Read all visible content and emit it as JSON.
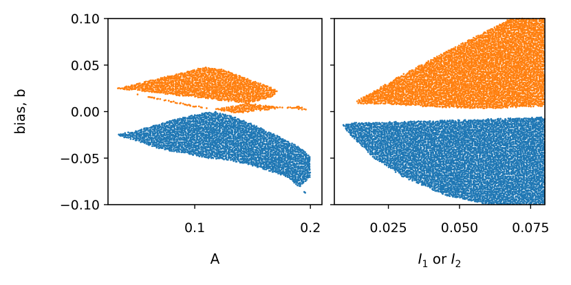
{
  "chart_data": [
    {
      "type": "scatter",
      "title": "",
      "xlabel": "A",
      "ylabel": "bias, b",
      "xlim": [
        0.025,
        0.21
      ],
      "ylim": [
        -0.1,
        0.1
      ],
      "xticks": [
        {
          "value": 0.1,
          "label": "0.1"
        },
        {
          "value": 0.2,
          "label": "0.2"
        }
      ],
      "yticks": [
        {
          "value": 0.1,
          "label": "0.10"
        },
        {
          "value": 0.05,
          "label": "0.05"
        },
        {
          "value": 0.0,
          "label": "0.00"
        },
        {
          "value": -0.05,
          "label": "−0.05"
        },
        {
          "value": -0.1,
          "label": "−0.10"
        }
      ],
      "grid": false,
      "colors": {
        "orange": "#ff7f0e",
        "blue": "#1f77b4"
      },
      "series": [
        {
          "color": "#ff7f0e",
          "points": [
            [
              0.032,
              0.025
            ],
            [
              0.05,
              0.03
            ],
            [
              0.07,
              0.036
            ],
            [
              0.09,
              0.042
            ],
            [
              0.105,
              0.047
            ],
            [
              0.113,
              0.048
            ],
            [
              0.125,
              0.045
            ],
            [
              0.14,
              0.038
            ],
            [
              0.155,
              0.031
            ],
            [
              0.168,
              0.025
            ],
            [
              0.172,
              0.021
            ],
            [
              0.165,
              0.015
            ],
            [
              0.15,
              0.01
            ],
            [
              0.13,
              0.005
            ],
            [
              0.115,
              0.003
            ],
            [
              0.1,
              0.005
            ],
            [
              0.085,
              0.009
            ],
            [
              0.065,
              0.014
            ],
            [
              0.045,
              0.02
            ],
            [
              0.136,
              -0.002
            ],
            [
              0.19,
              0.006
            ],
            [
              0.2,
              0.001
            ]
          ]
        },
        {
          "color": "#1f77b4",
          "points": [
            [
              0.032,
              -0.025
            ],
            [
              0.05,
              -0.02
            ],
            [
              0.07,
              -0.013
            ],
            [
              0.09,
              -0.006
            ],
            [
              0.11,
              -0.001
            ],
            [
              0.118,
              0.0
            ],
            [
              0.135,
              -0.006
            ],
            [
              0.155,
              -0.016
            ],
            [
              0.175,
              -0.028
            ],
            [
              0.19,
              -0.038
            ],
            [
              0.2,
              -0.048
            ],
            [
              0.2,
              -0.07
            ],
            [
              0.19,
              -0.082
            ],
            [
              0.2,
              -0.092
            ],
            [
              0.18,
              -0.07
            ],
            [
              0.155,
              -0.06
            ],
            [
              0.13,
              -0.052
            ],
            [
              0.11,
              -0.05
            ],
            [
              0.09,
              -0.045
            ],
            [
              0.07,
              -0.04
            ],
            [
              0.05,
              -0.032
            ]
          ]
        }
      ]
    },
    {
      "type": "scatter",
      "title": "",
      "xlabel": "I1 or I2",
      "xlabel_parts": {
        "a": "I",
        "a_sub": "1",
        "mid": " or ",
        "b": "I",
        "b_sub": "2"
      },
      "ylabel": "",
      "xlim": [
        0.006,
        0.08
      ],
      "ylim": [
        -0.1,
        0.1
      ],
      "xticks": [
        {
          "value": 0.025,
          "label": "0.025"
        },
        {
          "value": 0.05,
          "label": "0.050"
        },
        {
          "value": 0.075,
          "label": "0.075"
        }
      ],
      "yticks_labeled": false,
      "grid": false,
      "series": [
        {
          "color": "#ff7f0e",
          "points": [
            [
              0.013,
              0.01
            ],
            [
              0.03,
              0.04
            ],
            [
              0.05,
              0.072
            ],
            [
              0.068,
              0.1
            ],
            [
              0.08,
              0.1
            ],
            [
              0.08,
              0.006
            ],
            [
              0.06,
              0.003
            ],
            [
              0.04,
              0.005
            ],
            [
              0.025,
              0.008
            ],
            [
              0.016,
              0.008
            ]
          ]
        },
        {
          "color": "#1f77b4",
          "points": [
            [
              0.013,
              -0.012
            ],
            [
              0.04,
              -0.01
            ],
            [
              0.06,
              -0.008
            ],
            [
              0.08,
              -0.006
            ],
            [
              0.08,
              -0.1
            ],
            [
              0.06,
              -0.1
            ],
            [
              0.045,
              -0.09
            ],
            [
              0.03,
              -0.07
            ],
            [
              0.02,
              -0.05
            ],
            [
              0.01,
              -0.02
            ],
            [
              0.009,
              -0.014
            ]
          ]
        }
      ]
    }
  ]
}
